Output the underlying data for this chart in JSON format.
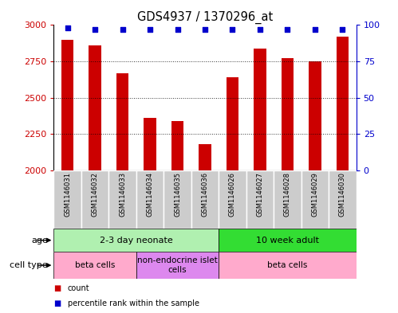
{
  "title": "GDS4937 / 1370296_at",
  "samples": [
    "GSM1146031",
    "GSM1146032",
    "GSM1146033",
    "GSM1146034",
    "GSM1146035",
    "GSM1146036",
    "GSM1146026",
    "GSM1146027",
    "GSM1146028",
    "GSM1146029",
    "GSM1146030"
  ],
  "counts": [
    2900,
    2860,
    2670,
    2360,
    2340,
    2180,
    2640,
    2840,
    2775,
    2750,
    2920
  ],
  "percentiles": [
    98,
    97,
    97,
    97,
    97,
    97,
    97,
    97,
    97,
    97,
    97
  ],
  "bar_color": "#cc0000",
  "percentile_color": "#0000cc",
  "ylim_left": [
    2000,
    3000
  ],
  "ylim_right": [
    0,
    100
  ],
  "yticks_left": [
    2000,
    2250,
    2500,
    2750,
    3000
  ],
  "yticks_right": [
    0,
    25,
    50,
    75,
    100
  ],
  "age_groups": [
    {
      "label": "2-3 day neonate",
      "start": 0,
      "end": 6,
      "color": "#b0f0b0"
    },
    {
      "label": "10 week adult",
      "start": 6,
      "end": 11,
      "color": "#33dd33"
    }
  ],
  "cell_type_groups": [
    {
      "label": "beta cells",
      "start": 0,
      "end": 3,
      "color": "#ffaacc"
    },
    {
      "label": "non-endocrine islet\ncells",
      "start": 3,
      "end": 6,
      "color": "#dd88ee"
    },
    {
      "label": "beta cells",
      "start": 6,
      "end": 11,
      "color": "#ffaacc"
    }
  ],
  "legend_items": [
    {
      "color": "#cc0000",
      "label": "count"
    },
    {
      "color": "#0000cc",
      "label": "percentile rank within the sample"
    }
  ],
  "background_color": "#ffffff",
  "tick_label_bg": "#cccccc",
  "bar_width": 0.45
}
